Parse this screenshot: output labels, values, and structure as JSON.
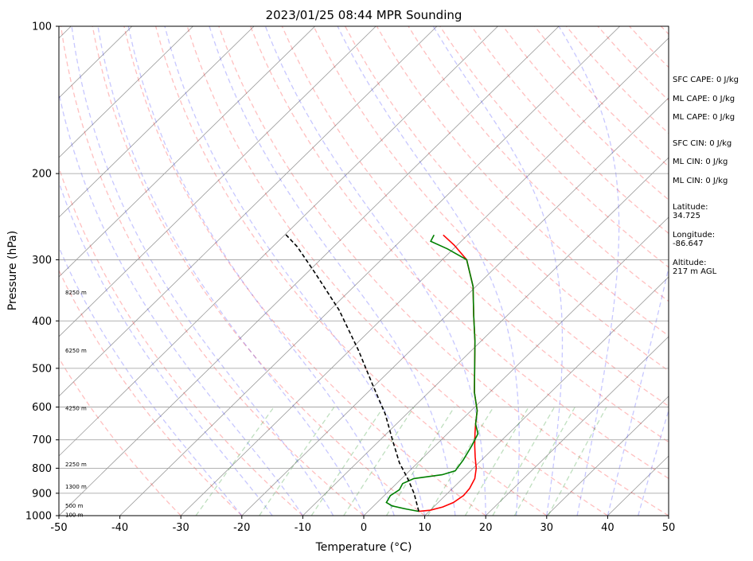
{
  "chart_data": {
    "type": "skew-t",
    "title": "2023/01/25 08:44 MPR Sounding",
    "xlabel": "Temperature (°C)",
    "ylabel": "Pressure (hPa)",
    "xlim": [
      -50,
      50
    ],
    "ylim": [
      1000,
      100
    ],
    "y_scale": "log",
    "x_ticks": [
      -50,
      -40,
      -30,
      -20,
      -10,
      0,
      10,
      20,
      30,
      40,
      50
    ],
    "y_ticks": [
      100,
      200,
      300,
      400,
      500,
      600,
      700,
      800,
      900,
      1000
    ],
    "grid": true,
    "height_labels": [
      {
        "label": "8250 m",
        "p": 350
      },
      {
        "label": "6250 m",
        "p": 460
      },
      {
        "label": "4250 m",
        "p": 603
      },
      {
        "label": "2250 m",
        "p": 785
      },
      {
        "label": "1300 m",
        "p": 872
      },
      {
        "label": "500 m",
        "p": 955
      },
      {
        "label": "100 m",
        "p": 997
      }
    ],
    "series": [
      {
        "color": "#ff0000",
        "points": [
          [
            8.3,
            980
          ],
          [
            10.0,
            975
          ],
          [
            11.5,
            960
          ],
          [
            12.5,
            940
          ],
          [
            13.0,
            910
          ],
          [
            12.8,
            880
          ],
          [
            12.0,
            840
          ],
          [
            10.5,
            800
          ],
          [
            8.5,
            760
          ],
          [
            6.5,
            720
          ],
          [
            4.5,
            680
          ],
          [
            3.0,
            650
          ],
          [
            1.0,
            610
          ],
          [
            -2.5,
            560
          ],
          [
            -6.5,
            500
          ],
          [
            -11.0,
            440
          ],
          [
            -15.5,
            390
          ],
          [
            -20.5,
            340
          ],
          [
            -26.0,
            300
          ],
          [
            -30.5,
            280
          ],
          [
            -34.0,
            267
          ]
        ]
      },
      {
        "color": "#008000",
        "points": [
          [
            8.3,
            980
          ],
          [
            6.0,
            970
          ],
          [
            3.0,
            955
          ],
          [
            1.5,
            940
          ],
          [
            1.0,
            910
          ],
          [
            1.5,
            885
          ],
          [
            1.0,
            860
          ],
          [
            2.0,
            840
          ],
          [
            6.0,
            825
          ],
          [
            7.5,
            810
          ],
          [
            7.0,
            770
          ],
          [
            6.0,
            720
          ],
          [
            5.0,
            680
          ],
          [
            3.0,
            650
          ],
          [
            1.0,
            610
          ],
          [
            -2.5,
            560
          ],
          [
            -6.5,
            500
          ],
          [
            -11.0,
            440
          ],
          [
            -15.5,
            390
          ],
          [
            -20.5,
            340
          ],
          [
            -26.0,
            300
          ],
          [
            -31.0,
            285
          ],
          [
            -35.0,
            275
          ],
          [
            -35.5,
            267
          ]
        ]
      },
      {
        "color": "#000000",
        "dashed": true,
        "points": [
          [
            8.3,
            980
          ],
          [
            4.5,
            900
          ],
          [
            1.0,
            840
          ],
          [
            -3.0,
            780
          ],
          [
            -8.0,
            700
          ],
          [
            -13.5,
            620
          ],
          [
            -20.5,
            540
          ],
          [
            -28.5,
            460
          ],
          [
            -38.5,
            380
          ],
          [
            -48.5,
            320
          ],
          [
            -56.0,
            282
          ],
          [
            -60.0,
            266
          ]
        ]
      }
    ]
  },
  "side_panel": {
    "sfc_cape": "SFC CAPE: 0 J/kg",
    "ml_cape_1": "ML CAPE: 0 J/kg",
    "ml_cape_2": "ML CAPE: 0 J/kg",
    "sfc_cin": "SFC CIN: 0 J/kg",
    "ml_cin_1": "ML CIN: 0 J/kg",
    "ml_cin_2": "ML CIN: 0 J/kg",
    "latitude": "Latitude:\n34.725",
    "longitude": "Longitude:\n-86.647",
    "altitude": "Altitude:\n217 m AGL"
  }
}
